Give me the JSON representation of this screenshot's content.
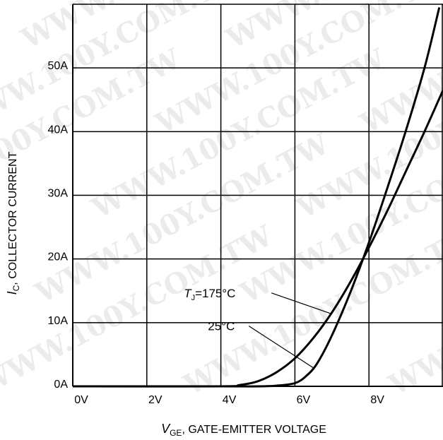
{
  "chart_data": {
    "type": "line",
    "title": "",
    "xlabel": {
      "symbol": "V",
      "subscript": "GE",
      "text": ", GATE-EMITTER VOLTAGE"
    },
    "ylabel": {
      "symbol": "I",
      "subscript": "C",
      "text": ", COLLECTOR CURRENT"
    },
    "xlim": [
      0,
      10
    ],
    "ylim": [
      0,
      60
    ],
    "x_ticks": [
      {
        "value": 0,
        "label": "0V"
      },
      {
        "value": 2,
        "label": "2V"
      },
      {
        "value": 4,
        "label": "4V"
      },
      {
        "value": 6,
        "label": "6V"
      },
      {
        "value": 8,
        "label": "8V"
      }
    ],
    "y_ticks": [
      {
        "value": 0,
        "label": "0A"
      },
      {
        "value": 10,
        "label": "10A"
      },
      {
        "value": 20,
        "label": "20A"
      },
      {
        "value": 30,
        "label": "30A"
      },
      {
        "value": 40,
        "label": "40A"
      },
      {
        "value": 50,
        "label": "50A"
      }
    ],
    "grid": true,
    "series": [
      {
        "name": "TJ=175°C",
        "label_symbol": "T",
        "label_subscript": "J",
        "label_text": "=175°C",
        "x": [
          0,
          4.0,
          4.5,
          5.0,
          5.5,
          6.0,
          6.5,
          7.0,
          7.5,
          8.0,
          8.5,
          9.0,
          9.5,
          10.0
        ],
        "y": [
          0,
          0,
          0.2,
          0.8,
          2.2,
          4.4,
          7.6,
          11.6,
          16.4,
          21.8,
          27.6,
          33.8,
          40.0,
          46.5
        ]
      },
      {
        "name": "25°C",
        "label_text": "25°C",
        "x": [
          0,
          4.0,
          5.0,
          5.5,
          6.0,
          6.3,
          6.6,
          7.0,
          7.5,
          8.0,
          8.5,
          9.0,
          9.5,
          9.9
        ],
        "y": [
          0,
          0,
          0,
          0.1,
          0.5,
          1.6,
          3.6,
          8.0,
          14.8,
          22.6,
          31.2,
          40.2,
          50.0,
          59.5
        ]
      }
    ],
    "annotations": [
      {
        "text_ref": "series.0",
        "label_x": 3.0,
        "label_y": 14.0,
        "leader_to": [
          6.98,
          11.4
        ]
      },
      {
        "text_ref": "series.1",
        "label_x": 3.65,
        "label_y": 8.8,
        "leader_to": [
          6.5,
          2.9
        ]
      }
    ],
    "watermark": "WWW.100Y.COM.TW",
    "colors": {
      "line": "#000000",
      "grid": "#000000",
      "background": "#ffffff"
    }
  }
}
